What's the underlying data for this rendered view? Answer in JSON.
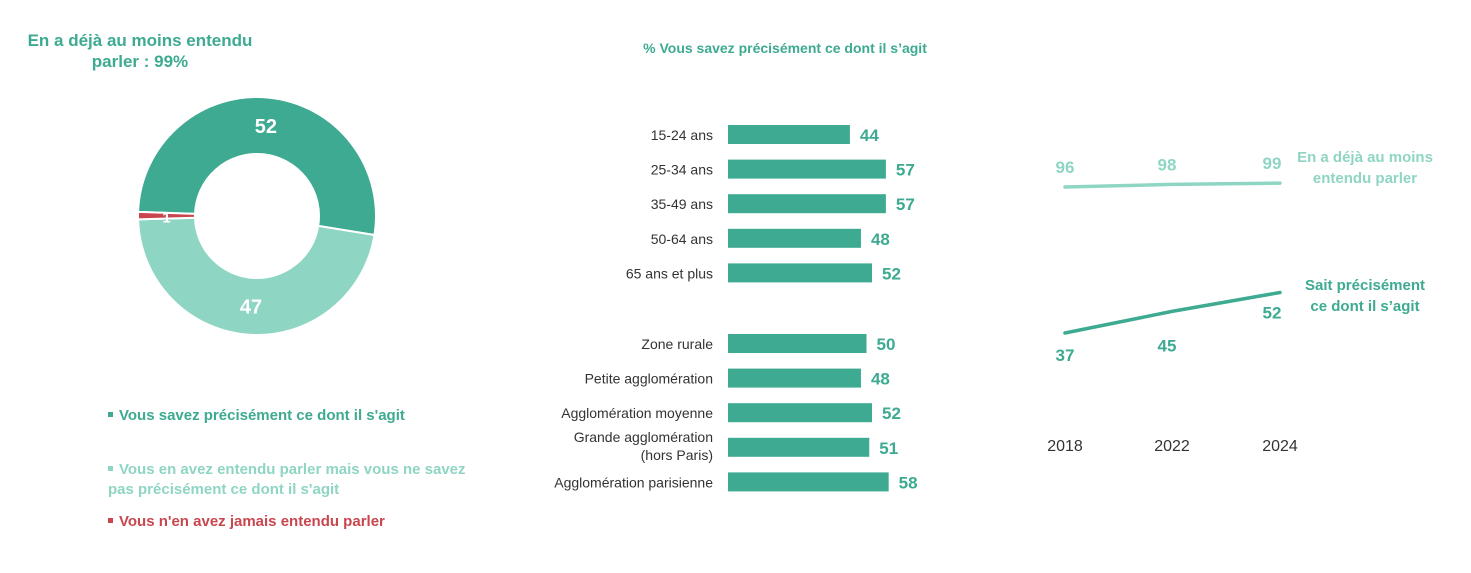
{
  "colors": {
    "dark_green": "#3DAA91",
    "light_green": "#8FD5C4",
    "red": "#C8464E",
    "text": "#333333"
  },
  "donut": {
    "title": "En a déjà au moins entendu parler : 99%"
  },
  "bar_panel": {
    "title": "% Vous savez précisément ce dont il s’agit"
  },
  "legend": {
    "items": [
      {
        "label": "Vous savez précisément ce dont il s'agit",
        "color": "#3DAA91"
      },
      {
        "label": "Vous en avez entendu parler mais vous ne savez pas précisément ce dont il s'agit",
        "color": "#8FD5C4"
      },
      {
        "label": "Vous n'en avez jamais entendu parler",
        "color": "#C8464E"
      }
    ]
  },
  "chart_data": [
    {
      "type": "pie",
      "style": "donut",
      "title": "En a déjà au moins entendu parler : 99%",
      "slices": [
        {
          "label": "Vous savez précisément ce dont il s'agit",
          "value": 52,
          "color": "#3DAA91"
        },
        {
          "label": "Vous en avez entendu parler mais vous ne savez pas précisément ce dont il s'agit",
          "value": 47,
          "color": "#8FD5C4"
        },
        {
          "label": "Vous n'en avez jamais entendu parler",
          "value": 1,
          "color": "#C8464E"
        }
      ]
    },
    {
      "type": "bar",
      "orientation": "horizontal",
      "title": "% Vous savez précisément ce dont il s’agit",
      "groups": [
        {
          "categories": [
            "15-24 ans",
            "25-34 ans",
            "35-49 ans",
            "50-64 ans",
            "65 ans et plus"
          ],
          "values": [
            44,
            57,
            57,
            48,
            52
          ]
        },
        {
          "categories": [
            "Zone rurale",
            "Petite agglomération",
            "Agglomération moyenne",
            "Grande agglomération (hors Paris)",
            "Agglomération parisienne"
          ],
          "values": [
            50,
            48,
            52,
            51,
            58
          ]
        }
      ],
      "color": "#3DAA91",
      "grid": false
    },
    {
      "type": "line",
      "x": [
        "2018",
        "2022",
        "2024"
      ],
      "series": [
        {
          "name": "En a déjà au moins entendu parler",
          "values": [
            96,
            98,
            99
          ],
          "color": "#8FD5C4"
        },
        {
          "name": "Sait précisément ce dont il s’agit",
          "values": [
            37,
            45,
            52
          ],
          "color": "#3DAA91"
        }
      ],
      "grid": false
    }
  ]
}
